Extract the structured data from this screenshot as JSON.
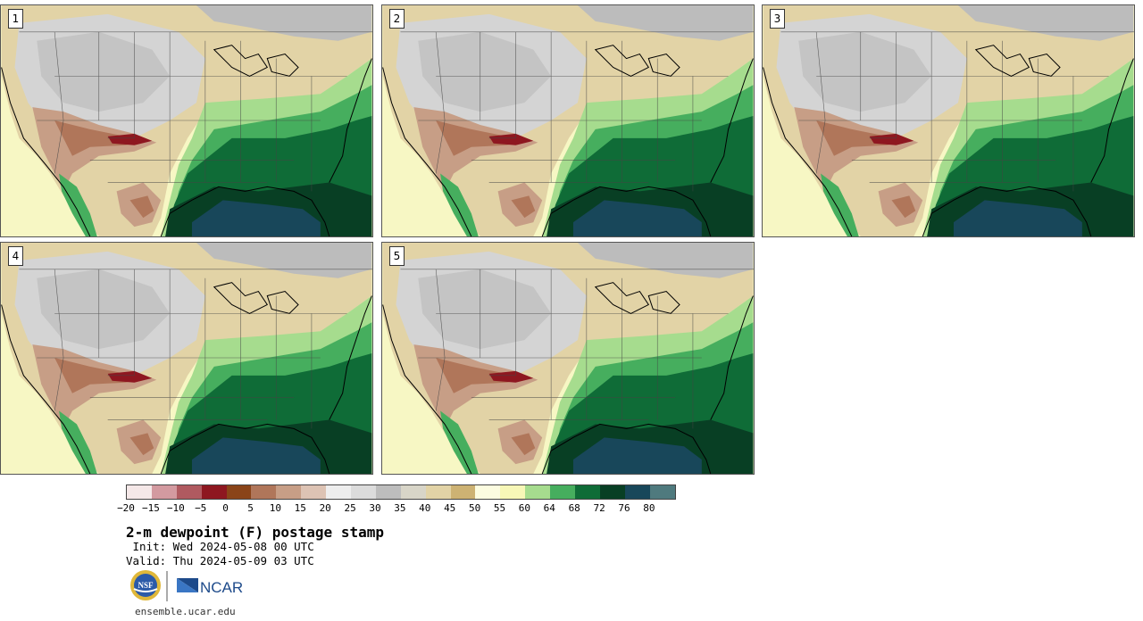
{
  "panels": [
    {
      "label": "1"
    },
    {
      "label": "2"
    },
    {
      "label": "3"
    },
    {
      "label": "4"
    },
    {
      "label": "5"
    }
  ],
  "colorbar": {
    "colors": [
      "#f5e8e8",
      "#d39aa0",
      "#b05a60",
      "#8e1720",
      "#8a4418",
      "#b0765a",
      "#c79e86",
      "#ddc3b4",
      "#eeeeee",
      "#dcdcdc",
      "#bdbdbd",
      "#d8d5c8",
      "#e2d3a6",
      "#cdb273",
      "#fcfce0",
      "#f7f7b7",
      "#a6dc8e",
      "#46ae5e",
      "#0f6c37",
      "#083f24",
      "#18475a",
      "#4f7a7e"
    ],
    "tick_labels": [
      "−20",
      "−15",
      "−10",
      "−5",
      "0",
      "5",
      "10",
      "15",
      "20",
      "25",
      "30",
      "35",
      "40",
      "45",
      "50",
      "55",
      "60",
      "64",
      "68",
      "72",
      "76",
      "80"
    ]
  },
  "title": "2-m dewpoint (F) postage stamp",
  "init_line": " Init: Wed 2024-05-08 00 UTC",
  "valid_line": "Valid: Thu 2024-05-09 03 UTC",
  "logos": {
    "nsf": "NSF",
    "ncar": "NCAR"
  },
  "url": "ensemble.ucar.edu"
}
